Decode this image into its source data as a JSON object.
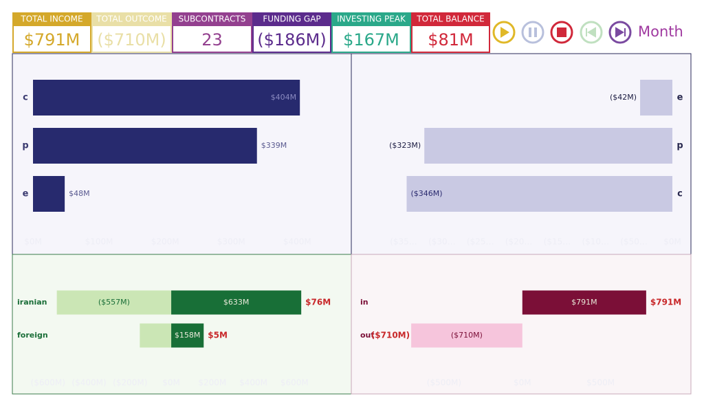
{
  "kpis": [
    {
      "label": "TOTAL INCOME",
      "value": "$791M",
      "color": "#d4a82a"
    },
    {
      "label": "TOTAL OUTCOME",
      "value": "($710M)",
      "color": "#e9dfa6"
    },
    {
      "label": "SUBCONTRACTS",
      "value": "23",
      "color": "#93408f"
    },
    {
      "label": "FUNDING GAP",
      "value": "($186M)",
      "color": "#5b2b8c"
    },
    {
      "label": "INVESTING PEAK",
      "value": "$167M",
      "color": "#2aa889"
    },
    {
      "label": "TOTAL BALANCE",
      "value": "$81M",
      "color": "#d1283a"
    }
  ],
  "controls": {
    "period": "Month"
  },
  "chart_data": [
    {
      "type": "hbar",
      "categories": [
        "c",
        "p",
        "e"
      ],
      "values": [
        404,
        339,
        48
      ],
      "value_labels": [
        "$404M",
        "$339M",
        "$48M"
      ],
      "color": "#272a6e",
      "xlim": [
        0,
        460
      ],
      "xticks": [
        {
          "value": 0,
          "label": "$0M"
        },
        {
          "value": 100,
          "label": "$100M"
        },
        {
          "value": 200,
          "label": "$200M"
        },
        {
          "value": 300,
          "label": "$300M"
        },
        {
          "value": 400,
          "label": "$400M"
        }
      ]
    },
    {
      "type": "hbar",
      "categories": [
        "e",
        "p",
        "c"
      ],
      "values": [
        -42,
        -323,
        -346
      ],
      "value_labels": [
        "($42M)",
        "($323M)",
        "($346M)"
      ],
      "color": "#c9c9e3",
      "xlim": [
        -410,
        0
      ],
      "xticks": [
        {
          "value": -350,
          "label": "($35…"
        },
        {
          "value": -300,
          "label": "($30…"
        },
        {
          "value": -250,
          "label": "($25…"
        },
        {
          "value": -200,
          "label": "($20…"
        },
        {
          "value": -150,
          "label": "($15…"
        },
        {
          "value": -100,
          "label": "($10…"
        },
        {
          "value": -50,
          "label": "($50…"
        },
        {
          "value": 0,
          "label": "$0M"
        }
      ]
    },
    {
      "type": "diverging",
      "categories": [
        "iranian",
        "foreign"
      ],
      "label_color": "#1a6e38",
      "series": [
        {
          "color": "#cbe6b5",
          "values": [
            -557,
            -153
          ],
          "value_labels": [
            "($557M)",
            null
          ]
        },
        {
          "color": "#186f37",
          "values": [
            633,
            158
          ],
          "value_labels": [
            "$633M",
            "$158M"
          ]
        }
      ],
      "totals": [
        76,
        5
      ],
      "total_labels": [
        "$76M",
        "$5M"
      ],
      "total_color": "#c8282a",
      "xlim": [
        -750,
        840
      ],
      "xticks": [
        {
          "value": -600,
          "label": "($600M)"
        },
        {
          "value": -400,
          "label": "($400M)"
        },
        {
          "value": -200,
          "label": "($200M)"
        },
        {
          "value": 0,
          "label": "$0M"
        },
        {
          "value": 200,
          "label": "$200M"
        },
        {
          "value": 400,
          "label": "$400M"
        },
        {
          "value": 600,
          "label": "$600M"
        }
      ]
    },
    {
      "type": "diverging",
      "categories": [
        "in",
        "out"
      ],
      "label_color": "#7a0e36",
      "series": [
        {
          "color": "#f6c5dc",
          "values": [
            null,
            -710
          ],
          "value_labels": [
            null,
            "($710M)"
          ]
        },
        {
          "color": "#7b0f37",
          "values": [
            791,
            null
          ],
          "value_labels": [
            "$791M",
            null
          ]
        }
      ],
      "totals": [
        791,
        -710
      ],
      "total_labels": [
        "$791M",
        "($710M)"
      ],
      "total_color": "#c8282a",
      "xlim": [
        -1075,
        1055
      ],
      "xticks": [
        {
          "value": -500,
          "label": "($500M)"
        },
        {
          "value": 0,
          "label": "$0M"
        },
        {
          "value": 500,
          "label": "$500M"
        }
      ]
    }
  ]
}
